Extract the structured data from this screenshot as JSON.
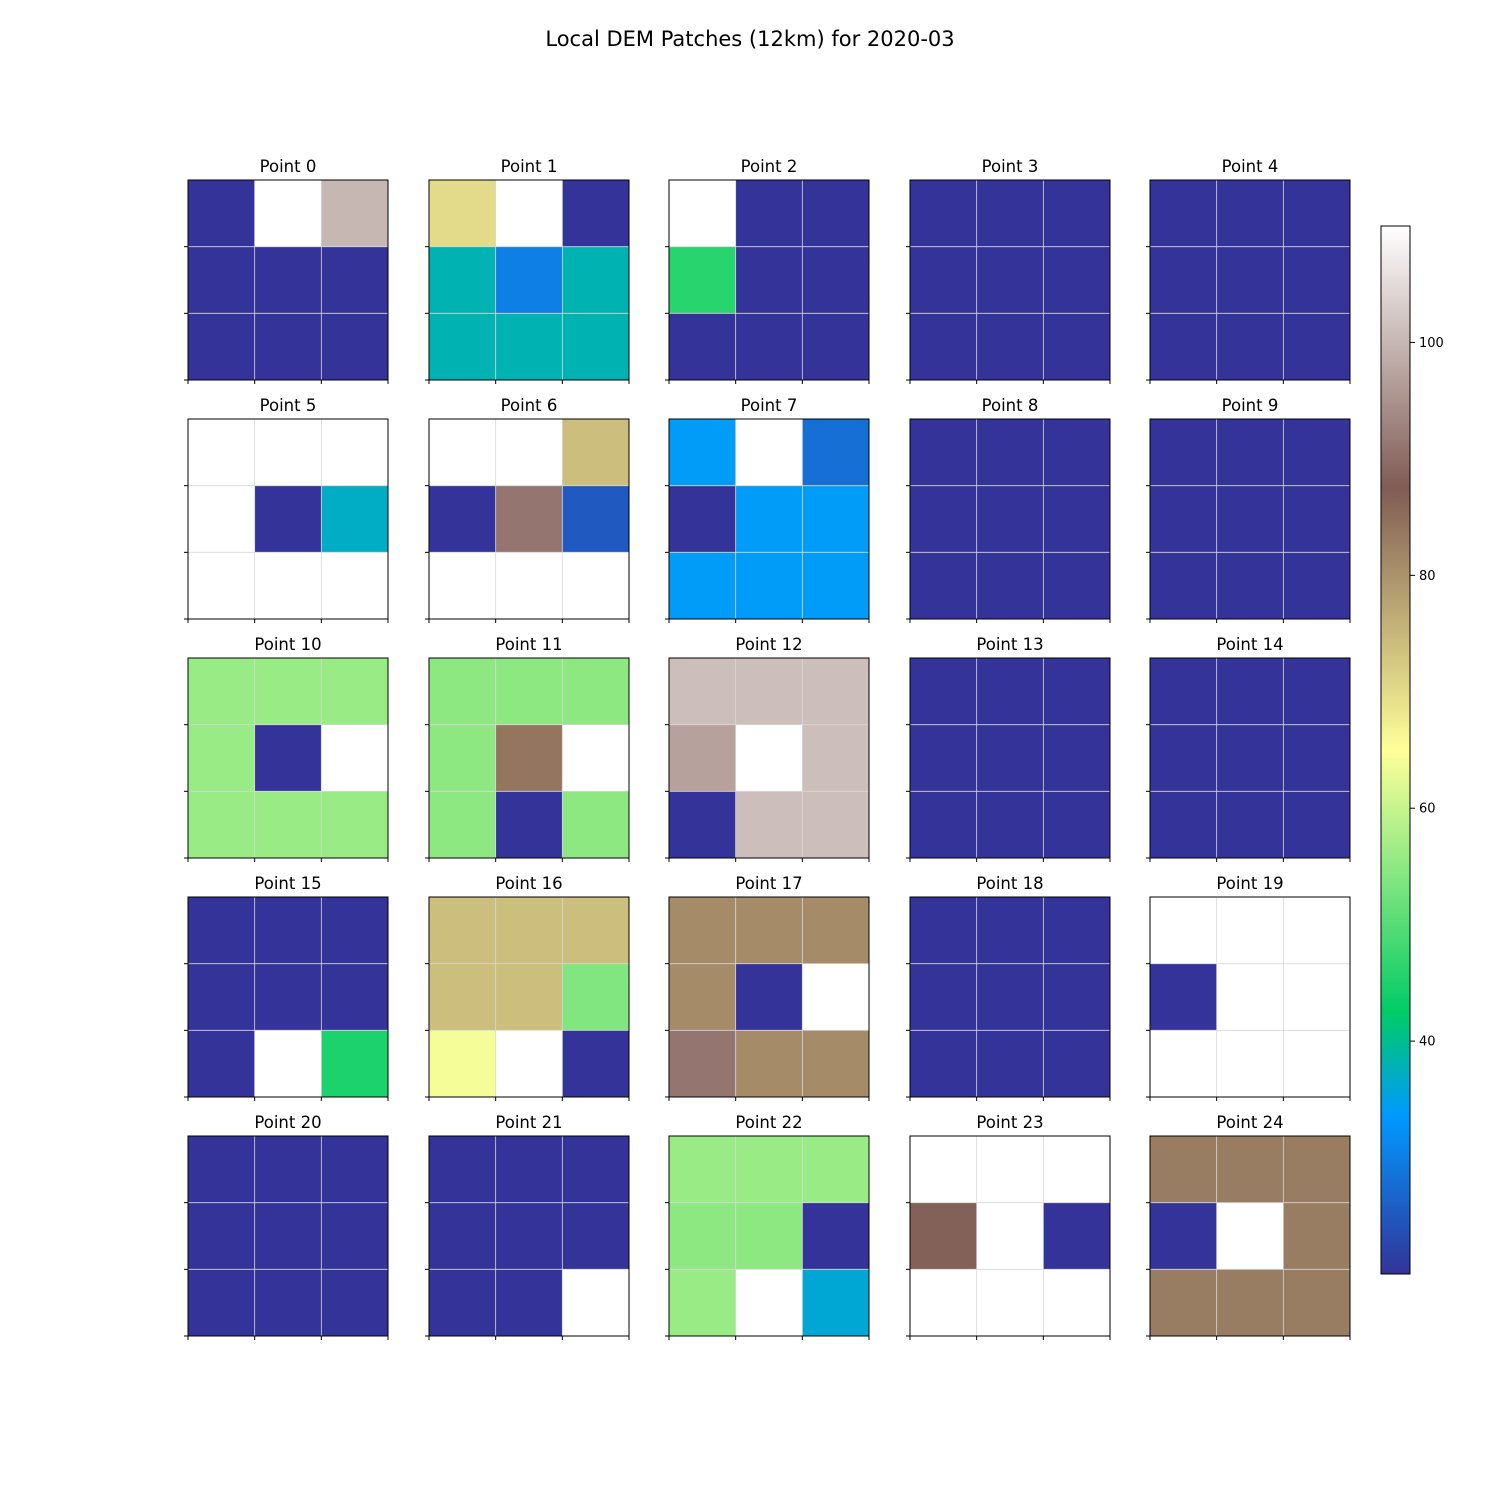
{
  "chart_data": {
    "type": "heatmap",
    "title": "Local DEM Patches (12km) for 2020-03",
    "colormap": "terrain",
    "color_range": [
      20,
      110
    ],
    "colorbar_ticks": [
      40,
      60,
      80,
      100
    ],
    "grid": true,
    "layout": {
      "rows": 5,
      "cols": 5
    },
    "panels": [
      {
        "label": "Point 0",
        "values": [
          [
            20,
            110,
            100
          ],
          [
            20,
            20,
            20
          ],
          [
            20,
            20,
            20
          ]
        ]
      },
      {
        "label": "Point 1",
        "values": [
          [
            70,
            110,
            20
          ],
          [
            38,
            30,
            38
          ],
          [
            38,
            38,
            38
          ]
        ]
      },
      {
        "label": "Point 2",
        "values": [
          [
            110,
            20,
            20
          ],
          [
            46,
            20,
            20
          ],
          [
            20,
            20,
            20
          ]
        ]
      },
      {
        "label": "Point 3",
        "values": [
          [
            20,
            20,
            20
          ],
          [
            20,
            20,
            20
          ],
          [
            20,
            20,
            20
          ]
        ]
      },
      {
        "label": "Point 4",
        "values": [
          [
            20,
            20,
            20
          ],
          [
            20,
            20,
            20
          ],
          [
            20,
            20,
            20
          ]
        ]
      },
      {
        "label": "Point 5",
        "values": [
          [
            110,
            110,
            110
          ],
          [
            110,
            20,
            37
          ],
          [
            110,
            110,
            110
          ]
        ]
      },
      {
        "label": "Point 6",
        "values": [
          [
            110,
            110,
            74
          ],
          [
            20,
            91,
            25
          ],
          [
            110,
            110,
            110
          ]
        ]
      },
      {
        "label": "Point 7",
        "values": [
          [
            34,
            110,
            28
          ],
          [
            20,
            34,
            34
          ],
          [
            34,
            34,
            34
          ]
        ]
      },
      {
        "label": "Point 8",
        "values": [
          [
            20,
            20,
            20
          ],
          [
            20,
            20,
            20
          ],
          [
            20,
            20,
            20
          ]
        ]
      },
      {
        "label": "Point 9",
        "values": [
          [
            20,
            20,
            20
          ],
          [
            20,
            20,
            20
          ],
          [
            20,
            20,
            20
          ]
        ]
      },
      {
        "label": "Point 10",
        "values": [
          [
            56,
            56,
            56
          ],
          [
            56,
            20,
            110
          ],
          [
            56,
            56,
            56
          ]
        ]
      },
      {
        "label": "Point 11",
        "values": [
          [
            55,
            55,
            55
          ],
          [
            55,
            84,
            110
          ],
          [
            55,
            20,
            55
          ]
        ]
      },
      {
        "label": "Point 12",
        "values": [
          [
            101,
            101,
            101
          ],
          [
            97,
            110,
            101
          ],
          [
            20,
            101,
            101
          ]
        ]
      },
      {
        "label": "Point 13",
        "values": [
          [
            20,
            20,
            20
          ],
          [
            20,
            20,
            20
          ],
          [
            20,
            20,
            20
          ]
        ]
      },
      {
        "label": "Point 14",
        "values": [
          [
            20,
            20,
            20
          ],
          [
            20,
            20,
            20
          ],
          [
            20,
            20,
            20
          ]
        ]
      },
      {
        "label": "Point 15",
        "values": [
          [
            20,
            20,
            20
          ],
          [
            20,
            20,
            20
          ],
          [
            20,
            110,
            45
          ]
        ]
      },
      {
        "label": "Point 16",
        "values": [
          [
            74,
            74,
            74
          ],
          [
            74,
            74,
            54
          ],
          [
            64,
            110,
            20
          ]
        ]
      },
      {
        "label": "Point 17",
        "values": [
          [
            81,
            81,
            81
          ],
          [
            81,
            20,
            110
          ],
          [
            91,
            81,
            81
          ]
        ]
      },
      {
        "label": "Point 18",
        "values": [
          [
            20,
            20,
            20
          ],
          [
            20,
            20,
            20
          ],
          [
            20,
            20,
            20
          ]
        ]
      },
      {
        "label": "Point 19",
        "values": [
          [
            110,
            110,
            110
          ],
          [
            20,
            110,
            110
          ],
          [
            110,
            110,
            110
          ]
        ]
      },
      {
        "label": "Point 20",
        "values": [
          [
            20,
            20,
            20
          ],
          [
            20,
            20,
            20
          ],
          [
            20,
            20,
            20
          ]
        ]
      },
      {
        "label": "Point 21",
        "values": [
          [
            20,
            20,
            20
          ],
          [
            20,
            20,
            20
          ],
          [
            20,
            20,
            110
          ]
        ]
      },
      {
        "label": "Point 22",
        "values": [
          [
            56,
            56,
            56
          ],
          [
            55,
            55,
            20
          ],
          [
            56,
            110,
            36
          ]
        ]
      },
      {
        "label": "Point 23",
        "values": [
          [
            110,
            110,
            110
          ],
          [
            88,
            110,
            20
          ],
          [
            110,
            110,
            110
          ]
        ]
      },
      {
        "label": "Point 24",
        "values": [
          [
            83,
            83,
            83
          ],
          [
            20,
            110,
            83
          ],
          [
            83,
            83,
            83
          ]
        ]
      }
    ]
  }
}
